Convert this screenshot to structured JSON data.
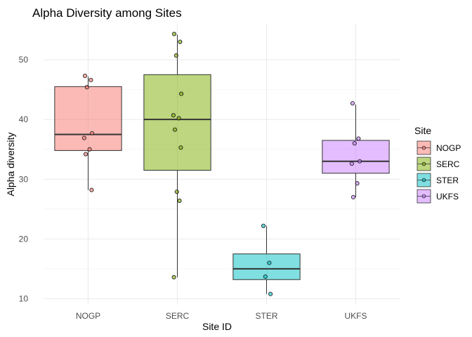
{
  "chart_data": {
    "type": "boxplot",
    "title": "Alpha Diversity among Sites",
    "xlabel": "Site ID",
    "ylabel": "Alpha diversity",
    "ylim": [
      9,
      56
    ],
    "yticks": [
      10,
      20,
      30,
      40,
      50
    ],
    "grid": true,
    "legend": {
      "title": "Site",
      "position": "right"
    },
    "categories": [
      "NOGP",
      "SERC",
      "STER",
      "UKFS"
    ],
    "colors": {
      "NOGP": "#F8766D",
      "SERC": "#7CAE00",
      "STER": "#00BFC4",
      "UKFS": "#C77CFF"
    },
    "boxes": [
      {
        "name": "NOGP",
        "min": 28.2,
        "q1": 34.8,
        "median": 37.5,
        "q3": 45.5,
        "max": 47.2,
        "points": [
          47.3,
          46.6,
          45.4,
          37.7,
          36.9,
          35.0,
          34.2,
          28.2
        ]
      },
      {
        "name": "SERC",
        "min": 13.6,
        "q1": 31.5,
        "median": 40.0,
        "q3": 47.5,
        "max": 54.2,
        "points": [
          54.3,
          53.0,
          50.7,
          44.3,
          40.7,
          40.2,
          38.3,
          35.3,
          27.9,
          26.4,
          13.6
        ]
      },
      {
        "name": "STER",
        "min": 10.8,
        "q1": 13.2,
        "median": 15.0,
        "q3": 17.5,
        "max": 22.2,
        "points": [
          22.2,
          16.0,
          13.7,
          10.8
        ]
      },
      {
        "name": "UKFS",
        "min": 27.0,
        "q1": 31.0,
        "median": 33.0,
        "q3": 36.5,
        "max": 42.5,
        "points": [
          42.7,
          36.8,
          36.0,
          33.0,
          32.6,
          29.3,
          27.0
        ]
      }
    ]
  }
}
